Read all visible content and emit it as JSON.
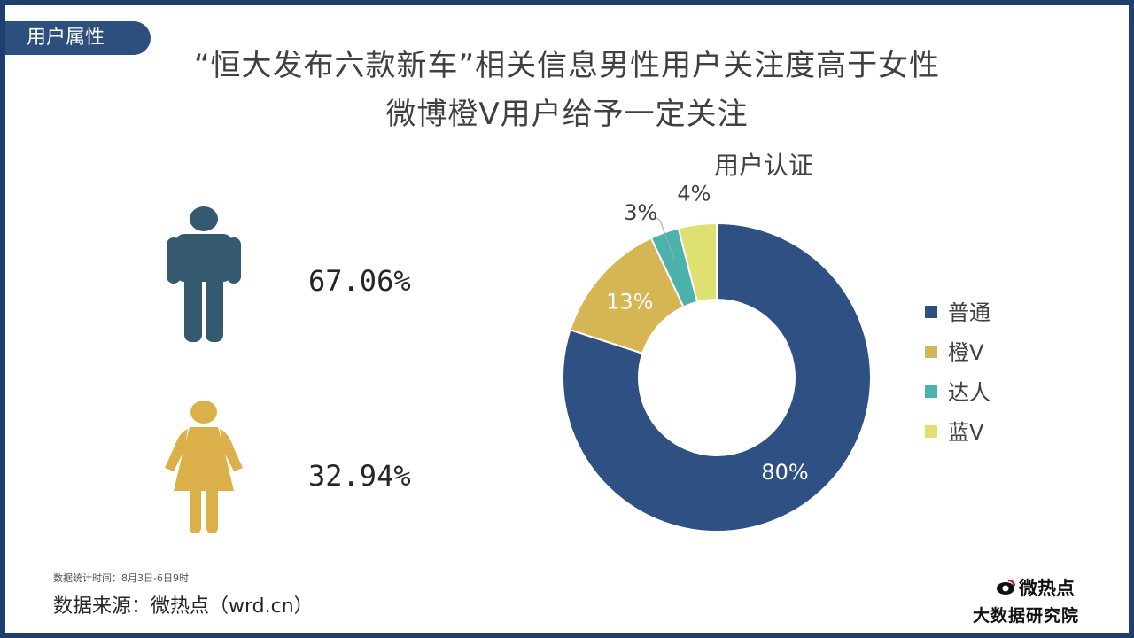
{
  "section_tag": "用户属性",
  "title_line1": "“恒大发布六款新车”相关信息男性用户关注度高于女性",
  "title_line2": "微博橙V用户给予一定关注",
  "gender": {
    "male": {
      "percent": "67.06%",
      "color": "#35596f"
    },
    "female": {
      "percent": "32.94%",
      "color": "#dbb04a"
    }
  },
  "note": "数据统计时间：8月3日-6日9时",
  "source": "数据来源：微热点（wrd.cn）",
  "logo": {
    "line1": "微热点",
    "line2": "大数据研究院"
  },
  "chart_data": {
    "type": "pie",
    "title": "用户认证",
    "legend_position": "right",
    "categories": [
      "普通",
      "橙V",
      "达人",
      "蓝V"
    ],
    "values": [
      80,
      13,
      3,
      4
    ],
    "labels": [
      "80%",
      "13%",
      "3%",
      "4%"
    ],
    "colors": [
      "#2e5083",
      "#d6b554",
      "#4bb3ab",
      "#dfe072"
    ]
  }
}
